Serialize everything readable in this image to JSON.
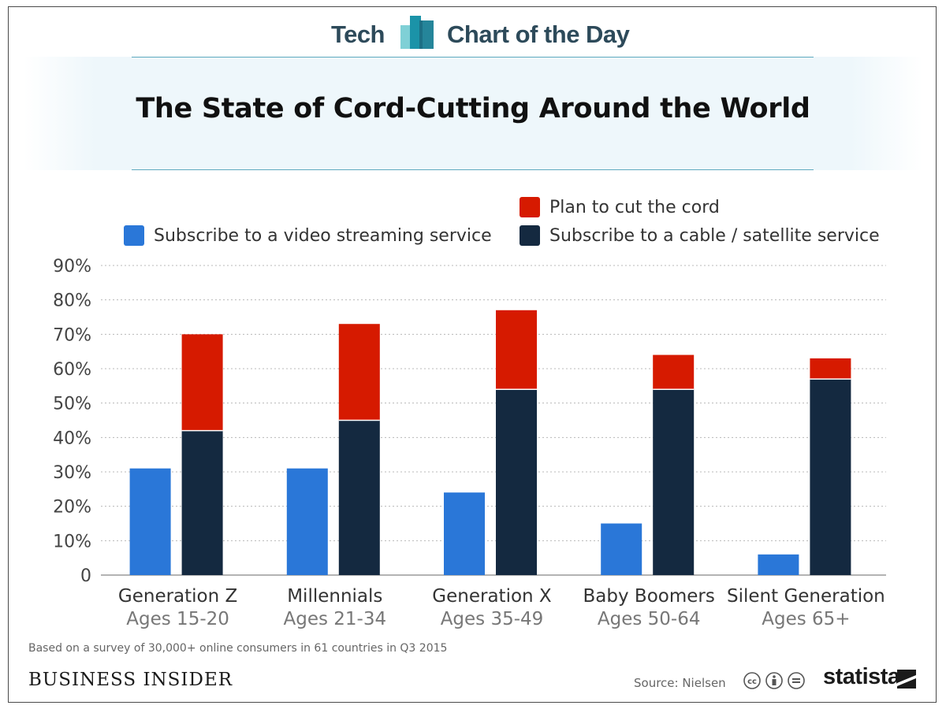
{
  "header": {
    "left_label": "Tech",
    "right_label": "Chart of the Day"
  },
  "title": "The State of Cord-Cutting Around the World",
  "legend": {
    "streaming": "Subscribe to a video streaming service",
    "plan_cut": "Plan to cut the cord",
    "cable": "Subscribe to a cable / satellite service"
  },
  "colors": {
    "streaming": "#2a77d8",
    "plan_cut": "#d61a00",
    "cable": "#142940",
    "accent": "#2d4a5a"
  },
  "chart_data": {
    "type": "bar",
    "stacked_series_on_second_bar": true,
    "categories": [
      "Generation Z",
      "Millennials",
      "Generation X",
      "Baby Boomers",
      "Silent Generation"
    ],
    "subcategories": [
      "Ages 15-20",
      "Ages 21-34",
      "Ages 35-49",
      "Ages 50-64",
      "Ages 65+"
    ],
    "series": [
      {
        "name": "Subscribe to a video streaming service",
        "values": [
          31,
          31,
          24,
          15,
          6
        ]
      },
      {
        "name": "Subscribe to a cable / satellite service",
        "values": [
          42,
          45,
          54,
          54,
          57
        ]
      },
      {
        "name": "Plan to cut the cord",
        "values": [
          28,
          28,
          23,
          10,
          6
        ]
      }
    ],
    "y_ticks": [
      "0",
      "10%",
      "20%",
      "30%",
      "40%",
      "50%",
      "60%",
      "70%",
      "80%",
      "90%"
    ],
    "ylim": [
      0,
      90
    ],
    "grid": true,
    "legend_position": "top"
  },
  "footnote": "Based on a survey of 30,000+ online consumers in 61 countries in Q3 2015",
  "brand": "BUSINESS INSIDER",
  "source": "Source: Nielsen",
  "statista": "statista"
}
